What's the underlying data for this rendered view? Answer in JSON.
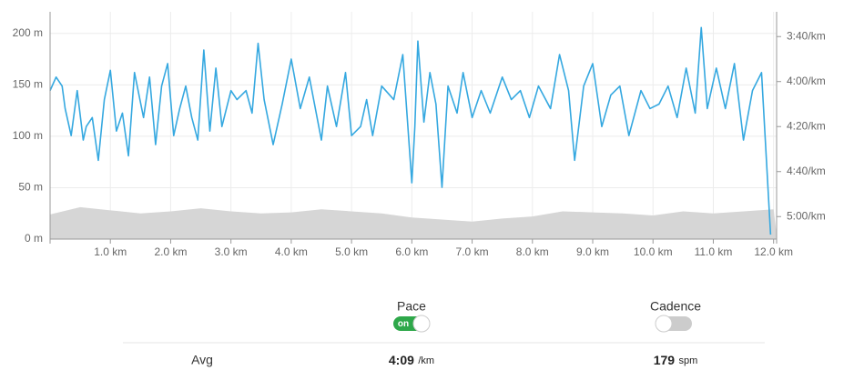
{
  "chart_data": {
    "type": "line",
    "xlim": [
      0,
      12.05
    ],
    "xticks": [
      {
        "value": 1,
        "label": "1.0 km"
      },
      {
        "value": 2,
        "label": "2.0 km"
      },
      {
        "value": 3,
        "label": "3.0 km"
      },
      {
        "value": 4,
        "label": "4.0 km"
      },
      {
        "value": 5,
        "label": "5.0 km"
      },
      {
        "value": 6,
        "label": "6.0 km"
      },
      {
        "value": 7,
        "label": "7.0 km"
      },
      {
        "value": 8,
        "label": "8.0 km"
      },
      {
        "value": 9,
        "label": "9.0 km"
      },
      {
        "value": 10,
        "label": "10.0 km"
      },
      {
        "value": 11,
        "label": "11.0 km"
      },
      {
        "value": 12,
        "label": "12.0 km"
      }
    ],
    "ylim": [
      0,
      221
    ],
    "yticks": [
      {
        "value": 0,
        "label": "0 m"
      },
      {
        "value": 50,
        "label": "50 m"
      },
      {
        "value": 100,
        "label": "100 m"
      },
      {
        "value": 150,
        "label": "150 m"
      },
      {
        "value": 200,
        "label": "200 m"
      }
    ],
    "y2lim": [
      310,
      209
    ],
    "y2ticks": [
      {
        "value": 220,
        "label": "3:40/km"
      },
      {
        "value": 240,
        "label": "4:00/km"
      },
      {
        "value": 260,
        "label": "4:20/km"
      },
      {
        "value": 280,
        "label": "4:40/km"
      },
      {
        "value": 300,
        "label": "5:00/km"
      }
    ],
    "grid": true,
    "series": [
      {
        "type": "area",
        "color": "#d6d6d6",
        "x": [
          0,
          0.5,
          1,
          1.5,
          2,
          2.5,
          3,
          3.5,
          4,
          4.5,
          5,
          5.5,
          6,
          6.5,
          7,
          7.5,
          8,
          8.5,
          9,
          9.5,
          10,
          10.5,
          11,
          11.5,
          12,
          12.05
        ],
        "values": [
          24,
          31,
          28,
          25,
          27,
          30,
          27,
          25,
          26,
          29,
          27,
          25,
          21,
          19,
          17,
          20,
          22,
          27,
          26,
          25,
          23,
          27,
          25,
          27,
          29,
          5
        ]
      },
      {
        "type": "line",
        "axis": "y2",
        "color": "#35a8e0",
        "x": [
          0,
          0.1,
          0.2,
          0.25,
          0.35,
          0.45,
          0.55,
          0.6,
          0.7,
          0.8,
          0.9,
          1.0,
          1.1,
          1.2,
          1.3,
          1.4,
          1.55,
          1.65,
          1.75,
          1.85,
          1.95,
          2.05,
          2.15,
          2.25,
          2.35,
          2.45,
          2.55,
          2.65,
          2.75,
          2.85,
          3.0,
          3.1,
          3.25,
          3.35,
          3.45,
          3.55,
          3.7,
          3.85,
          4.0,
          4.15,
          4.3,
          4.5,
          4.6,
          4.75,
          4.9,
          5.0,
          5.15,
          5.25,
          5.35,
          5.5,
          5.7,
          5.85,
          6.0,
          6.05,
          6.1,
          6.2,
          6.3,
          6.4,
          6.5,
          6.6,
          6.75,
          6.85,
          7.0,
          7.15,
          7.3,
          7.5,
          7.65,
          7.8,
          7.95,
          8.1,
          8.3,
          8.45,
          8.6,
          8.7,
          8.85,
          9.0,
          9.15,
          9.3,
          9.45,
          9.6,
          9.8,
          9.95,
          10.1,
          10.25,
          10.4,
          10.55,
          10.7,
          10.8,
          10.9,
          11.05,
          11.2,
          11.35,
          11.5,
          11.65,
          11.8,
          11.95
        ],
        "values": [
          244,
          238,
          242,
          252,
          264,
          244,
          266,
          260,
          256,
          275,
          248,
          235,
          262,
          254,
          273,
          236,
          256,
          238,
          268,
          242,
          232,
          264,
          252,
          242,
          256,
          266,
          226,
          262,
          234,
          260,
          244,
          248,
          244,
          254,
          223,
          248,
          268,
          250,
          230,
          252,
          238,
          266,
          242,
          260,
          236,
          264,
          260,
          248,
          264,
          242,
          248,
          228,
          285,
          260,
          222,
          258,
          236,
          250,
          287,
          242,
          254,
          236,
          256,
          244,
          254,
          238,
          248,
          244,
          256,
          242,
          252,
          228,
          244,
          275,
          242,
          232,
          260,
          246,
          242,
          264,
          244,
          252,
          250,
          242,
          256,
          234,
          254,
          216,
          252,
          234,
          252,
          232,
          266,
          244,
          236,
          308
        ]
      }
    ]
  },
  "stats": {
    "pace_label": "Pace",
    "pace_toggle": "on",
    "cadence_label": "Cadence",
    "avg_label": "Avg",
    "avg_pace": "4:09",
    "pace_unit": "/km",
    "avg_cadence": "179",
    "cadence_unit": "spm"
  }
}
